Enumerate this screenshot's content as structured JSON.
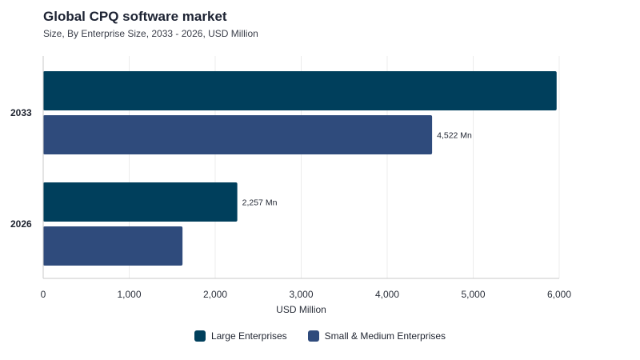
{
  "chart_data": {
    "type": "bar",
    "orientation": "horizontal",
    "title": "Global CPQ software market",
    "subtitle": "Size, By Enterprise Size, 2033 - 2026, USD Million",
    "xlabel": "USD Million",
    "ylabel": "",
    "xlim": [
      0,
      6000
    ],
    "xticks": [
      0,
      1000,
      2000,
      3000,
      4000,
      5000,
      6000
    ],
    "xtick_labels": [
      "0",
      "1,000",
      "2,000",
      "3,000",
      "4,000",
      "5,000",
      "6,000"
    ],
    "categories": [
      "2033",
      "2026"
    ],
    "series": [
      {
        "name": "Large Enterprises",
        "color": "#003f5c",
        "values": [
          5970,
          2257
        ],
        "labels": [
          "",
          "2,257 Mn"
        ]
      },
      {
        "name": "Small & Medium Enterprises",
        "color": "#2f4b7c",
        "values": [
          4522,
          1620
        ],
        "labels": [
          "4,522 Mn",
          ""
        ]
      }
    ],
    "grid": true,
    "legend_position": "bottom"
  }
}
